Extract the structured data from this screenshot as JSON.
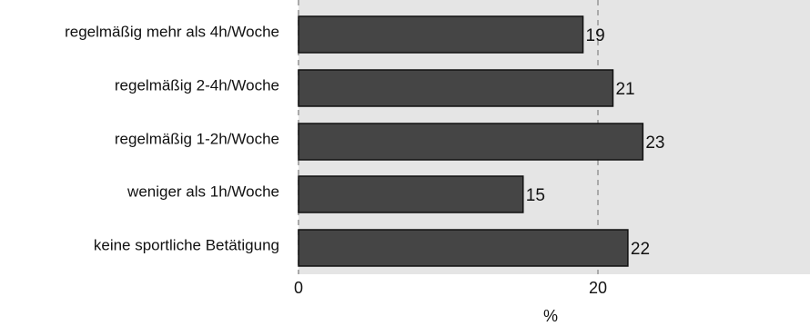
{
  "chart_data": {
    "type": "bar",
    "orientation": "horizontal",
    "categories": [
      "regelmäßig mehr als 4h/Woche",
      "regelmäßig 2-4h/Woche",
      "regelmäßig 1-2h/Woche",
      "weniger als 1h/Woche",
      "keine sportliche Betätigung"
    ],
    "values": [
      19,
      21,
      23,
      15,
      22
    ],
    "data_labels": [
      "19",
      "21",
      "23",
      "15",
      "22"
    ],
    "title": "",
    "xlabel": "%",
    "ylabel": "",
    "xlim": [
      0,
      34
    ],
    "x_ticks": [
      0,
      20
    ],
    "x_tick_labels": [
      "0",
      "20"
    ],
    "grid": "vertical dashed",
    "legend": "none",
    "colors": {
      "plot_background": "#e5e5e5",
      "bar_fill": "#454545",
      "bar_stroke": "#111111",
      "grid": "#aaaaaa"
    }
  }
}
